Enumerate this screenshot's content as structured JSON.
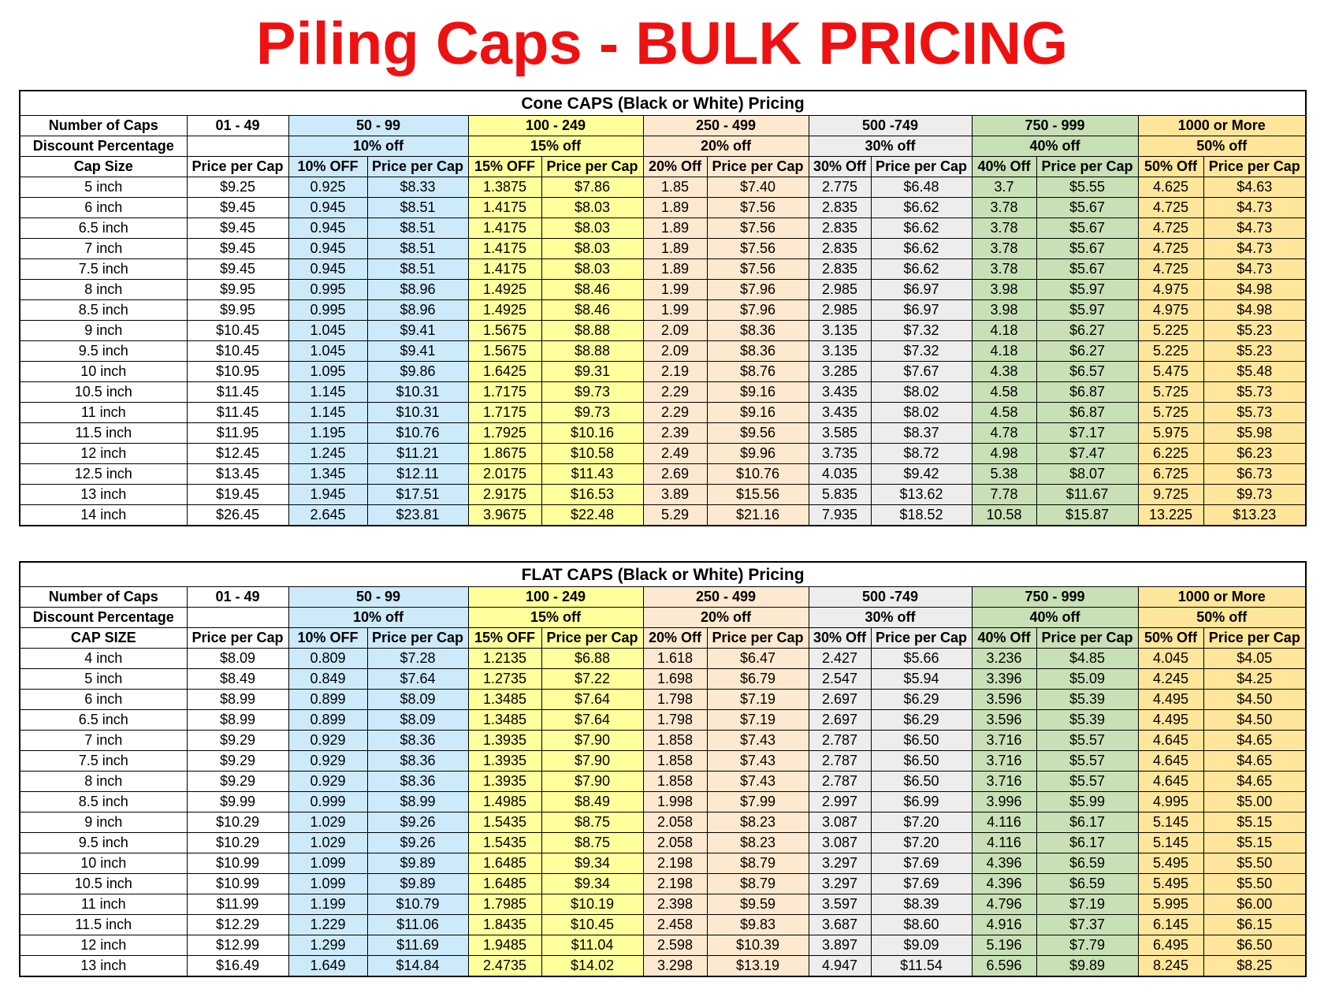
{
  "title": "Piling Caps - BULK PRICING",
  "tables": [
    {
      "caption": "Cone CAPS (Black or White) Pricing",
      "header": [
        "Number of Caps",
        "01 - 49",
        "50 - 99",
        "100 - 249",
        "250 - 499",
        "500 -749",
        "750 - 999",
        "1000 or More"
      ],
      "discount": {
        "label": "Discount Percentage",
        "values": [
          "10% off",
          "15% off",
          "20% off",
          "30% off",
          "40% off",
          "50% off"
        ]
      },
      "columns": [
        "Cap Size",
        "Price per Cap",
        "10% OFF",
        "Price per Cap",
        "15% OFF",
        "Price per Cap",
        "20% Off",
        "Price per Cap",
        "30% Off",
        "Price per Cap",
        "40% Off",
        "Price per Cap",
        "50% Off",
        "Price per Cap"
      ],
      "rows": [
        [
          "5 inch",
          "$9.25",
          "0.925",
          "$8.33",
          "1.3875",
          "$7.86",
          "1.85",
          "$7.40",
          "2.775",
          "$6.48",
          "3.7",
          "$5.55",
          "4.625",
          "$4.63"
        ],
        [
          "6 inch",
          "$9.45",
          "0.945",
          "$8.51",
          "1.4175",
          "$8.03",
          "1.89",
          "$7.56",
          "2.835",
          "$6.62",
          "3.78",
          "$5.67",
          "4.725",
          "$4.73"
        ],
        [
          "6.5 inch",
          "$9.45",
          "0.945",
          "$8.51",
          "1.4175",
          "$8.03",
          "1.89",
          "$7.56",
          "2.835",
          "$6.62",
          "3.78",
          "$5.67",
          "4.725",
          "$4.73"
        ],
        [
          "7 inch",
          "$9.45",
          "0.945",
          "$8.51",
          "1.4175",
          "$8.03",
          "1.89",
          "$7.56",
          "2.835",
          "$6.62",
          "3.78",
          "$5.67",
          "4.725",
          "$4.73"
        ],
        [
          "7.5 inch",
          "$9.45",
          "0.945",
          "$8.51",
          "1.4175",
          "$8.03",
          "1.89",
          "$7.56",
          "2.835",
          "$6.62",
          "3.78",
          "$5.67",
          "4.725",
          "$4.73"
        ],
        [
          "8 inch",
          "$9.95",
          "0.995",
          "$8.96",
          "1.4925",
          "$8.46",
          "1.99",
          "$7.96",
          "2.985",
          "$6.97",
          "3.98",
          "$5.97",
          "4.975",
          "$4.98"
        ],
        [
          "8.5 inch",
          "$9.95",
          "0.995",
          "$8.96",
          "1.4925",
          "$8.46",
          "1.99",
          "$7.96",
          "2.985",
          "$6.97",
          "3.98",
          "$5.97",
          "4.975",
          "$4.98"
        ],
        [
          "9 inch",
          "$10.45",
          "1.045",
          "$9.41",
          "1.5675",
          "$8.88",
          "2.09",
          "$8.36",
          "3.135",
          "$7.32",
          "4.18",
          "$6.27",
          "5.225",
          "$5.23"
        ],
        [
          "9.5 inch",
          "$10.45",
          "1.045",
          "$9.41",
          "1.5675",
          "$8.88",
          "2.09",
          "$8.36",
          "3.135",
          "$7.32",
          "4.18",
          "$6.27",
          "5.225",
          "$5.23"
        ],
        [
          "10 inch",
          "$10.95",
          "1.095",
          "$9.86",
          "1.6425",
          "$9.31",
          "2.19",
          "$8.76",
          "3.285",
          "$7.67",
          "4.38",
          "$6.57",
          "5.475",
          "$5.48"
        ],
        [
          "10.5 inch",
          "$11.45",
          "1.145",
          "$10.31",
          "1.7175",
          "$9.73",
          "2.29",
          "$9.16",
          "3.435",
          "$8.02",
          "4.58",
          "$6.87",
          "5.725",
          "$5.73"
        ],
        [
          "11 inch",
          "$11.45",
          "1.145",
          "$10.31",
          "1.7175",
          "$9.73",
          "2.29",
          "$9.16",
          "3.435",
          "$8.02",
          "4.58",
          "$6.87",
          "5.725",
          "$5.73"
        ],
        [
          "11.5 inch",
          "$11.95",
          "1.195",
          "$10.76",
          "1.7925",
          "$10.16",
          "2.39",
          "$9.56",
          "3.585",
          "$8.37",
          "4.78",
          "$7.17",
          "5.975",
          "$5.98"
        ],
        [
          "12 inch",
          "$12.45",
          "1.245",
          "$11.21",
          "1.8675",
          "$10.58",
          "2.49",
          "$9.96",
          "3.735",
          "$8.72",
          "4.98",
          "$7.47",
          "6.225",
          "$6.23"
        ],
        [
          "12.5 inch",
          "$13.45",
          "1.345",
          "$12.11",
          "2.0175",
          "$11.43",
          "2.69",
          "$10.76",
          "4.035",
          "$9.42",
          "5.38",
          "$8.07",
          "6.725",
          "$6.73"
        ],
        [
          "13 inch",
          "$19.45",
          "1.945",
          "$17.51",
          "2.9175",
          "$16.53",
          "3.89",
          "$15.56",
          "5.835",
          "$13.62",
          "7.78",
          "$11.67",
          "9.725",
          "$9.73"
        ],
        [
          "14 inch",
          "$26.45",
          "2.645",
          "$23.81",
          "3.9675",
          "$22.48",
          "5.29",
          "$21.16",
          "7.935",
          "$18.52",
          "10.58",
          "$15.87",
          "13.225",
          "$13.23"
        ]
      ]
    },
    {
      "caption": "FLAT CAPS (Black or White) Pricing",
      "header": [
        "Number of Caps",
        "01 - 49",
        "50 - 99",
        "100 - 249",
        "250 - 499",
        "500 -749",
        "750 - 999",
        "1000 or More"
      ],
      "discount": {
        "label": "Discount Percentage",
        "values": [
          "10% off",
          "15% off",
          "20% off",
          "30% off",
          "40% off",
          "50% off"
        ]
      },
      "columns": [
        "CAP SIZE",
        "Price per Cap",
        "10% OFF",
        "Price per Cap",
        "15% OFF",
        "Price per Cap",
        "20% Off",
        "Price per Cap",
        "30% Off",
        "Price per Cap",
        "40% Off",
        "Price per Cap",
        "50% Off",
        "Price per Cap"
      ],
      "rows": [
        [
          "4 inch",
          "$8.09",
          "0.809",
          "$7.28",
          "1.2135",
          "$6.88",
          "1.618",
          "$6.47",
          "2.427",
          "$5.66",
          "3.236",
          "$4.85",
          "4.045",
          "$4.05"
        ],
        [
          "5 inch",
          "$8.49",
          "0.849",
          "$7.64",
          "1.2735",
          "$7.22",
          "1.698",
          "$6.79",
          "2.547",
          "$5.94",
          "3.396",
          "$5.09",
          "4.245",
          "$4.25"
        ],
        [
          "6 inch",
          "$8.99",
          "0.899",
          "$8.09",
          "1.3485",
          "$7.64",
          "1.798",
          "$7.19",
          "2.697",
          "$6.29",
          "3.596",
          "$5.39",
          "4.495",
          "$4.50"
        ],
        [
          "6.5 inch",
          "$8.99",
          "0.899",
          "$8.09",
          "1.3485",
          "$7.64",
          "1.798",
          "$7.19",
          "2.697",
          "$6.29",
          "3.596",
          "$5.39",
          "4.495",
          "$4.50"
        ],
        [
          "7 inch",
          "$9.29",
          "0.929",
          "$8.36",
          "1.3935",
          "$7.90",
          "1.858",
          "$7.43",
          "2.787",
          "$6.50",
          "3.716",
          "$5.57",
          "4.645",
          "$4.65"
        ],
        [
          "7.5 inch",
          "$9.29",
          "0.929",
          "$8.36",
          "1.3935",
          "$7.90",
          "1.858",
          "$7.43",
          "2.787",
          "$6.50",
          "3.716",
          "$5.57",
          "4.645",
          "$4.65"
        ],
        [
          "8 inch",
          "$9.29",
          "0.929",
          "$8.36",
          "1.3935",
          "$7.90",
          "1.858",
          "$7.43",
          "2.787",
          "$6.50",
          "3.716",
          "$5.57",
          "4.645",
          "$4.65"
        ],
        [
          "8.5 inch",
          "$9.99",
          "0.999",
          "$8.99",
          "1.4985",
          "$8.49",
          "1.998",
          "$7.99",
          "2.997",
          "$6.99",
          "3.996",
          "$5.99",
          "4.995",
          "$5.00"
        ],
        [
          "9 inch",
          "$10.29",
          "1.029",
          "$9.26",
          "1.5435",
          "$8.75",
          "2.058",
          "$8.23",
          "3.087",
          "$7.20",
          "4.116",
          "$6.17",
          "5.145",
          "$5.15"
        ],
        [
          "9.5 inch",
          "$10.29",
          "1.029",
          "$9.26",
          "1.5435",
          "$8.75",
          "2.058",
          "$8.23",
          "3.087",
          "$7.20",
          "4.116",
          "$6.17",
          "5.145",
          "$5.15"
        ],
        [
          "10 inch",
          "$10.99",
          "1.099",
          "$9.89",
          "1.6485",
          "$9.34",
          "2.198",
          "$8.79",
          "3.297",
          "$7.69",
          "4.396",
          "$6.59",
          "5.495",
          "$5.50"
        ],
        [
          "10.5 inch",
          "$10.99",
          "1.099",
          "$9.89",
          "1.6485",
          "$9.34",
          "2.198",
          "$8.79",
          "3.297",
          "$7.69",
          "4.396",
          "$6.59",
          "5.495",
          "$5.50"
        ],
        [
          "11 inch",
          "$11.99",
          "1.199",
          "$10.79",
          "1.7985",
          "$10.19",
          "2.398",
          "$9.59",
          "3.597",
          "$8.39",
          "4.796",
          "$7.19",
          "5.995",
          "$6.00"
        ],
        [
          "11.5 inch",
          "$12.29",
          "1.229",
          "$11.06",
          "1.8435",
          "$10.45",
          "2.458",
          "$9.83",
          "3.687",
          "$8.60",
          "4.916",
          "$7.37",
          "6.145",
          "$6.15"
        ],
        [
          "12 inch",
          "$12.99",
          "1.299",
          "$11.69",
          "1.9485",
          "$11.04",
          "2.598",
          "$10.39",
          "3.897",
          "$9.09",
          "5.196",
          "$7.79",
          "6.495",
          "$6.50"
        ],
        [
          "13 inch",
          "$16.49",
          "1.649",
          "$14.84",
          "2.4735",
          "$14.02",
          "3.298",
          "$13.19",
          "4.947",
          "$11.54",
          "6.596",
          "$9.89",
          "8.245",
          "$8.25"
        ]
      ]
    }
  ]
}
